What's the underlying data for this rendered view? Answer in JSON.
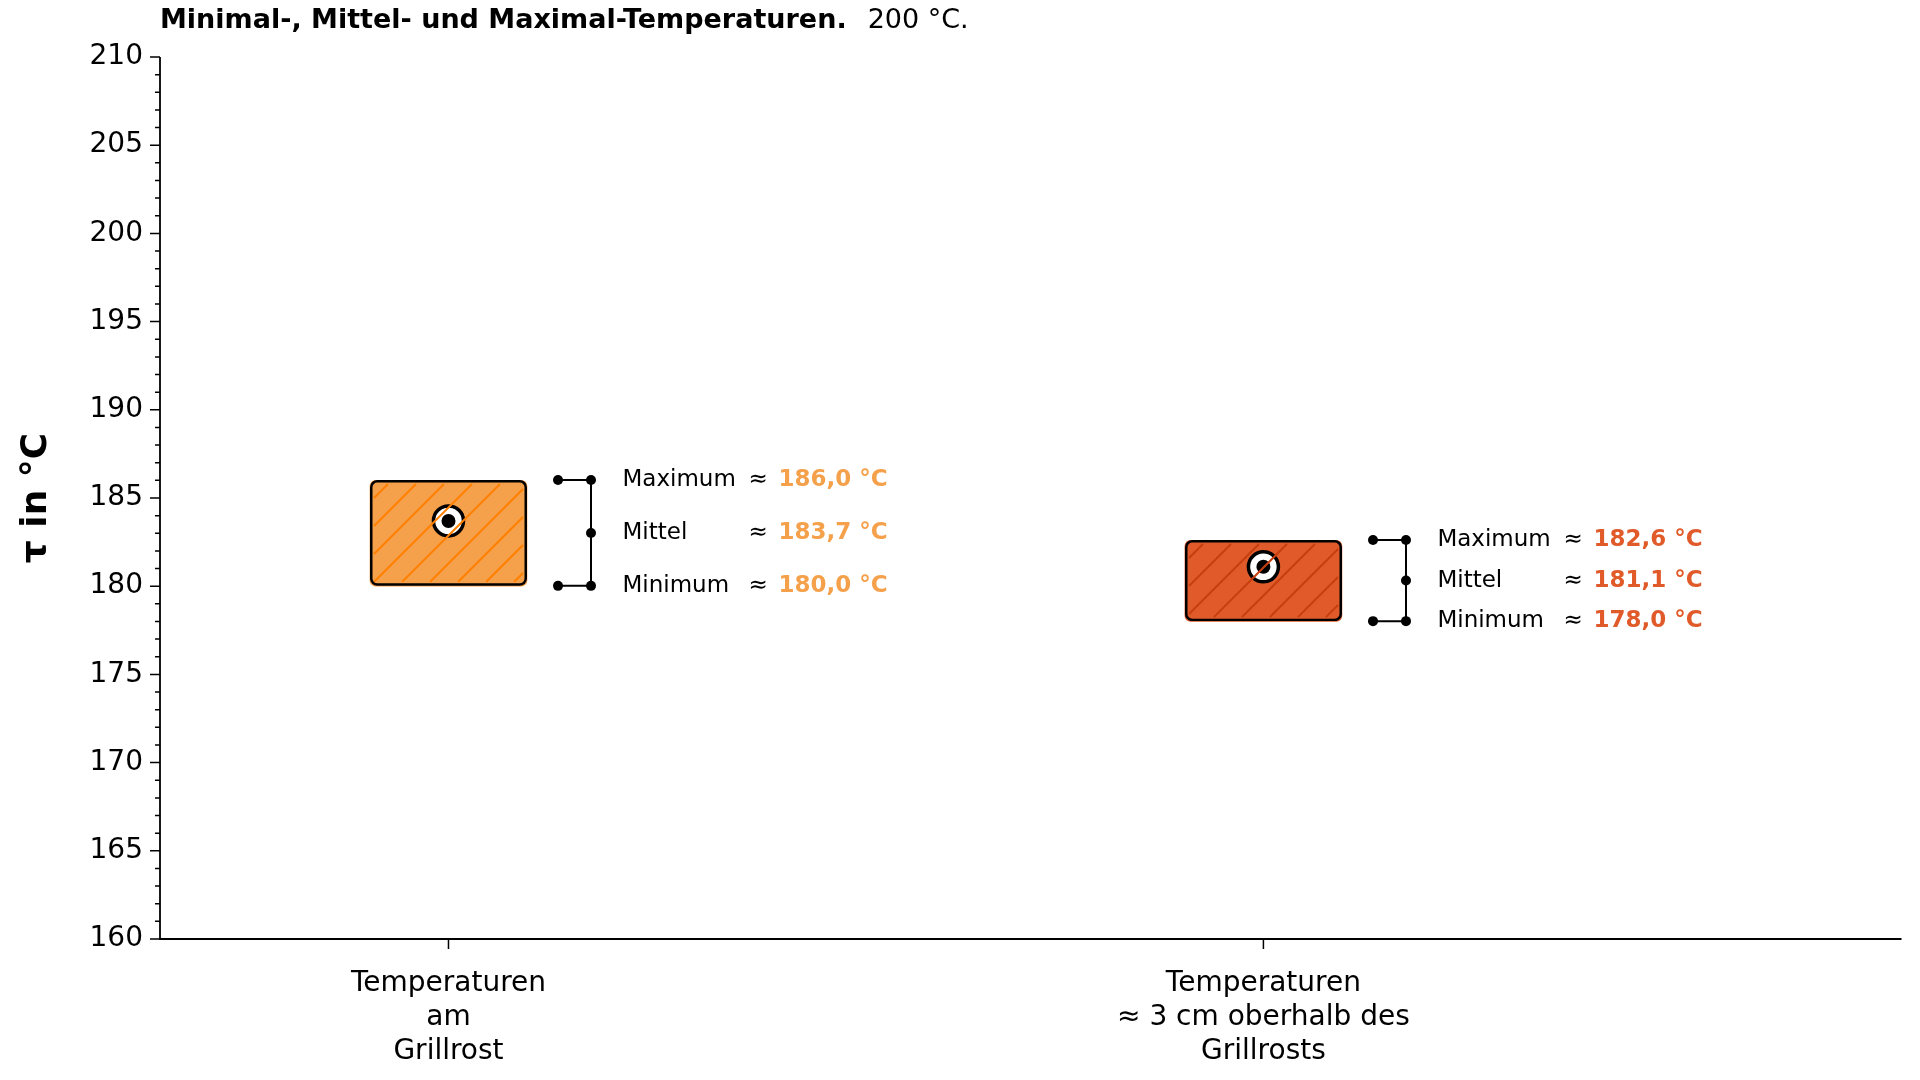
{
  "chart_data": {
    "type": "bar",
    "title": "Minimal-, Mittel- und Maximal-Temperaturen.",
    "subtitle": "200 °C.",
    "ylabel": "τ in °C",
    "categories": [
      "Temperaturen\nam\nGrillrost",
      "Temperaturen\n≈ 3 cm oberhalb des\nGrillrosts"
    ],
    "series": [
      {
        "values": [
          6.0,
          4.6
        ],
        "base": [
          180.0,
          178.0
        ],
        "colors": [
          "#f5a04a",
          "#e15a2a"
        ]
      },
      {
        "type": "scatter",
        "x": [
          "Temperaturen\nam\nGrillrost",
          "Temperaturen\n≈ 3 cm oberhalb des\nGrillrosts"
        ],
        "values": [
          183.7,
          181.1
        ],
        "color": "#000000",
        "marker": "circle"
      }
    ],
    "ylim": [
      160,
      210
    ],
    "yticks": [
      160,
      {
        "value": 161,
        "label": null
      },
      {
        "value": 162,
        "label": null
      },
      {
        "value": 163,
        "label": null
      },
      {
        "value": 164,
        "label": null
      },
      165,
      {
        "value": 166,
        "label": null
      },
      {
        "value": 167,
        "label": null
      },
      {
        "value": 168,
        "label": null
      },
      {
        "value": 169,
        "label": null
      },
      170,
      {
        "value": 171,
        "label": null
      },
      {
        "value": 172,
        "label": null
      },
      {
        "value": 173,
        "label": null
      },
      {
        "value": 174,
        "label": null
      },
      175,
      {
        "value": 176,
        "label": null
      },
      {
        "value": 177,
        "label": null
      },
      {
        "value": 178,
        "label": null
      },
      {
        "value": 179,
        "label": null
      },
      180,
      {
        "value": 181,
        "label": null
      },
      {
        "value": 182,
        "label": null
      },
      {
        "value": 183,
        "label": null
      },
      {
        "value": 184,
        "label": null
      },
      185,
      {
        "value": 186,
        "label": null
      },
      {
        "value": 187,
        "label": null
      },
      {
        "value": 188,
        "label": null
      },
      {
        "value": 189,
        "label": null
      },
      190,
      {
        "value": 191,
        "label": null
      },
      {
        "value": 192,
        "label": null
      },
      {
        "value": 193,
        "label": null
      },
      {
        "value": 194,
        "label": null
      },
      195,
      {
        "value": 196,
        "label": null
      },
      {
        "value": 197,
        "label": null
      },
      {
        "value": 198,
        "label": null
      },
      {
        "value": 199,
        "label": null
      },
      200,
      {
        "value": 201,
        "label": null
      },
      {
        "value": 202,
        "label": null
      },
      {
        "value": 203,
        "label": null
      },
      {
        "value": 204,
        "label": null
      },
      205,
      {
        "value": 206,
        "label": null
      },
      {
        "value": 207,
        "label": null
      },
      {
        "value": 208,
        "label": null
      },
      {
        "value": 209,
        "label": null
      },
      210
    ],
    "annotations": [
      "Maximum ≈ 186,0 °C",
      "Mittel ≈ 183,7 °C",
      "Minimum ≈ 180,0 °C",
      "Maximum ≈ 182,6 °C",
      "Mittel ≈ 181,1 °C",
      "Minimum ≈ 178,0 °C"
    ]
  }
}
